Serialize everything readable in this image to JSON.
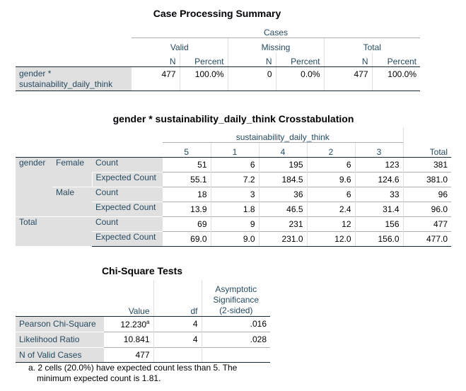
{
  "case_summary": {
    "title": "Case Processing Summary",
    "cases_header": "Cases",
    "groups": [
      "Valid",
      "Missing",
      "Total"
    ],
    "sub_headers": [
      "N",
      "Percent",
      "N",
      "Percent",
      "N",
      "Percent"
    ],
    "row_label_line1": "gender *",
    "row_label_line2": "sustainability_daily_think",
    "values": [
      "477",
      "100.0%",
      "0",
      "0.0%",
      "477",
      "100.0%"
    ]
  },
  "crosstab": {
    "title": "gender * sustainability_daily_think Crosstabulation",
    "col_var": "sustainability_daily_think",
    "columns": [
      "5",
      "1",
      "4",
      "2",
      "3"
    ],
    "total_label": "Total",
    "row_var": "gender",
    "groups": [
      {
        "label": "Female",
        "rows": [
          {
            "stat": "Count",
            "values": [
              "51",
              "6",
              "195",
              "6",
              "123",
              "381"
            ]
          },
          {
            "stat": "Expected Count",
            "values": [
              "55.1",
              "7.2",
              "184.5",
              "9.6",
              "124.6",
              "381.0"
            ]
          }
        ]
      },
      {
        "label": "Male",
        "rows": [
          {
            "stat": "Count",
            "values": [
              "18",
              "3",
              "36",
              "6",
              "33",
              "96"
            ]
          },
          {
            "stat": "Expected Count",
            "values": [
              "13.9",
              "1.8",
              "46.5",
              "2.4",
              "31.4",
              "96.0"
            ]
          }
        ]
      }
    ],
    "total_rows": [
      {
        "stat": "Count",
        "values": [
          "69",
          "9",
          "231",
          "12",
          "156",
          "477"
        ]
      },
      {
        "stat": "Expected Count",
        "values": [
          "69.0",
          "9.0",
          "231.0",
          "12.0",
          "156.0",
          "477.0"
        ]
      }
    ]
  },
  "chi": {
    "title": "Chi-Square Tests",
    "headers": {
      "value": "Value",
      "df": "df",
      "sig1": "Asymptotic",
      "sig2": "Significance",
      "sig3": "(2-sided)"
    },
    "rows": [
      {
        "label": "Pearson Chi-Square",
        "value": "12.230",
        "sup": "a",
        "df": "4",
        "sig": ".016"
      },
      {
        "label": "Likelihood Ratio",
        "value": "10.841",
        "sup": "",
        "df": "4",
        "sig": ".028"
      },
      {
        "label": "N of Valid Cases",
        "value": "477",
        "sup": "",
        "df": "",
        "sig": ""
      }
    ],
    "footnote_line1": "a. 2 cells (20.0%) have expected count less than 5. The",
    "footnote_line2": "minimum expected count is 1.81."
  }
}
